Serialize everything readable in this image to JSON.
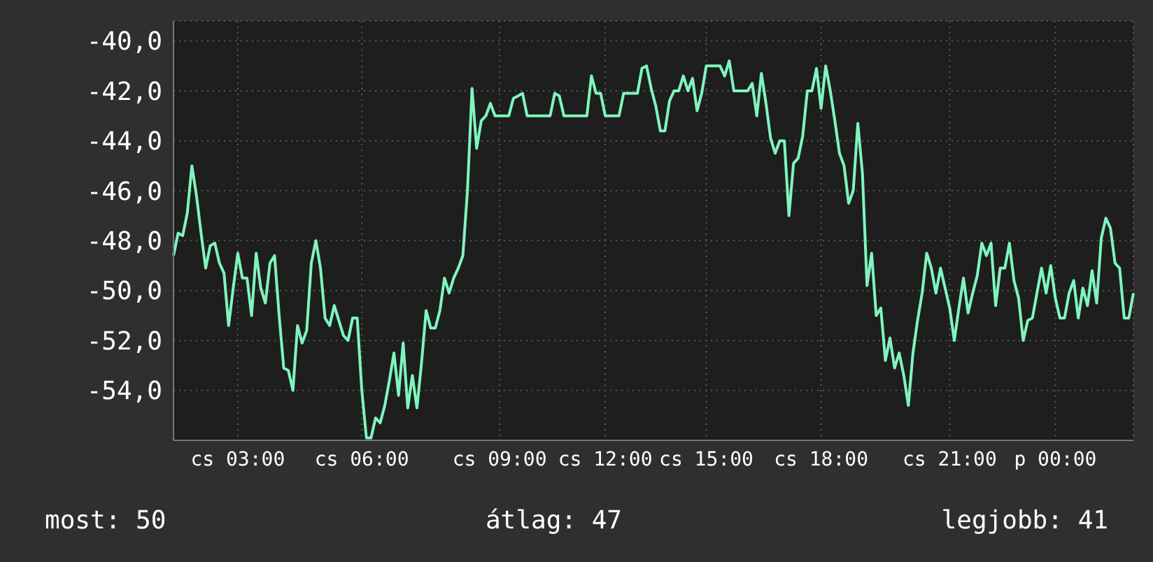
{
  "chart_data": {
    "type": "line",
    "annotations": [
      "most: 50",
      "átlag: 47",
      "legjobb: 41"
    ],
    "categories": [
      null,
      null,
      null,
      null,
      null,
      null,
      null,
      null,
      null,
      null,
      null,
      null,
      null,
      null,
      "cs 03:00",
      null,
      null,
      null,
      null,
      null,
      null,
      null,
      null,
      null,
      null,
      null,
      null,
      null,
      null,
      null,
      null,
      null,
      null,
      null,
      null,
      null,
      null,
      null,
      null,
      null,
      null,
      "cs 06:00",
      null,
      null,
      null,
      null,
      null,
      null,
      null,
      null,
      null,
      null,
      null,
      null,
      null,
      null,
      null,
      null,
      null,
      null,
      null,
      null,
      null,
      null,
      null,
      null,
      null,
      null,
      null,
      null,
      null,
      "cs 09:00",
      null,
      null,
      null,
      null,
      null,
      null,
      null,
      null,
      null,
      null,
      null,
      null,
      null,
      null,
      null,
      null,
      null,
      null,
      null,
      null,
      null,
      null,
      "cs 12:00",
      null,
      null,
      null,
      null,
      null,
      null,
      null,
      null,
      null,
      null,
      null,
      null,
      null,
      null,
      null,
      null,
      null,
      null,
      null,
      null,
      null,
      "cs 15:00",
      null,
      null,
      null,
      null,
      null,
      null,
      null,
      null,
      null,
      null,
      null,
      null,
      null,
      null,
      null,
      null,
      null,
      null,
      null,
      null,
      null,
      null,
      null,
      null,
      "cs 18:00",
      null,
      null,
      null,
      null,
      null,
      null,
      null,
      null,
      null,
      null,
      null,
      null,
      null,
      null,
      null,
      null,
      null,
      null,
      null,
      null,
      null,
      null,
      null,
      null,
      null,
      null,
      null,
      "cs 21:00",
      null,
      null,
      null,
      null,
      null,
      null,
      null,
      null,
      null,
      null,
      null,
      null,
      null,
      null,
      null,
      null,
      null,
      null,
      null,
      null,
      null,
      null,
      "p 00:00",
      null,
      null,
      null,
      null,
      null,
      null,
      null,
      null,
      null,
      null,
      null,
      null,
      null,
      null,
      null,
      null,
      null
    ],
    "ylim": [
      -56,
      -39.2
    ],
    "yticks": [
      {
        "value": -54,
        "label": "-54,0"
      },
      {
        "value": -52,
        "label": "-52,0"
      },
      {
        "value": -50,
        "label": "-50,0"
      },
      {
        "value": -48,
        "label": "-48,0"
      },
      {
        "value": -46,
        "label": "-46,0"
      },
      {
        "value": -44,
        "label": "-44,0"
      },
      {
        "value": -42,
        "label": "-42,0"
      },
      {
        "value": -40,
        "label": "-40,0"
      }
    ],
    "grid": true,
    "marker": "none",
    "line_style": "solid",
    "series": [
      {
        "color": "#7ff5bd",
        "values": [
          -48.6,
          -47.7,
          -47.8,
          -46.9,
          -45.0,
          -46.2,
          -47.7,
          -49.1,
          -48.2,
          -48.1,
          -48.9,
          -49.3,
          -51.4,
          -49.9,
          -48.5,
          -49.5,
          -49.5,
          -51.0,
          -48.5,
          -49.9,
          -50.5,
          -48.9,
          -48.6,
          -51.0,
          -53.1,
          -53.2,
          -54.0,
          -51.4,
          -52.1,
          -51.6,
          -48.9,
          -48.0,
          -49.1,
          -51.1,
          -51.4,
          -50.6,
          -51.2,
          -51.8,
          -52.0,
          -51.1,
          -51.1,
          -54.0,
          -55.9,
          -55.9,
          -55.1,
          -55.3,
          -54.6,
          -53.6,
          -52.5,
          -54.2,
          -52.1,
          -54.7,
          -53.4,
          -54.7,
          -52.9,
          -50.8,
          -51.5,
          -51.5,
          -50.8,
          -49.5,
          -50.1,
          -49.5,
          -49.1,
          -48.6,
          -46.0,
          -41.9,
          -44.3,
          -43.2,
          -43.0,
          -42.5,
          -43.0,
          -43.0,
          -43.0,
          -43.0,
          -42.3,
          -42.2,
          -42.1,
          -43.0,
          -43.0,
          -43.0,
          -43.0,
          -43.0,
          -43.0,
          -42.1,
          -42.2,
          -43.0,
          -43.0,
          -43.0,
          -43.0,
          -43.0,
          -43.0,
          -41.4,
          -42.1,
          -42.1,
          -43.0,
          -43.0,
          -43.0,
          -43.0,
          -42.1,
          -42.1,
          -42.1,
          -42.1,
          -41.1,
          -41.0,
          -41.9,
          -42.6,
          -43.6,
          -43.6,
          -42.4,
          -42.0,
          -42.0,
          -41.4,
          -42.0,
          -41.5,
          -42.8,
          -42.1,
          -41.0,
          -41.0,
          -41.0,
          -41.0,
          -41.4,
          -40.8,
          -42.0,
          -42.0,
          -42.0,
          -42.0,
          -41.7,
          -43.0,
          -41.3,
          -42.5,
          -43.9,
          -44.5,
          -44.0,
          -44.0,
          -47.0,
          -44.9,
          -44.7,
          -43.8,
          -42.0,
          -42.0,
          -41.1,
          -42.7,
          -41.0,
          -42.0,
          -43.2,
          -44.5,
          -45.0,
          -46.5,
          -46.0,
          -43.3,
          -45.3,
          -49.8,
          -48.5,
          -51.0,
          -50.7,
          -52.8,
          -51.9,
          -53.1,
          -52.5,
          -53.4,
          -54.6,
          -52.5,
          -51.2,
          -50.1,
          -48.5,
          -49.1,
          -50.1,
          -49.1,
          -49.9,
          -50.7,
          -52.0,
          -50.7,
          -49.5,
          -50.9,
          -50.1,
          -49.4,
          -48.1,
          -48.6,
          -48.1,
          -50.6,
          -49.1,
          -49.1,
          -48.1,
          -49.6,
          -50.3,
          -52.0,
          -51.2,
          -51.1,
          -50.1,
          -49.1,
          -50.1,
          -49.0,
          -50.3,
          -51.1,
          -51.1,
          -50.1,
          -49.6,
          -51.1,
          -49.9,
          -50.6,
          -49.2,
          -50.5,
          -47.9,
          -47.1,
          -47.5,
          -48.9,
          -49.1,
          -51.1,
          -51.1,
          -50.1
        ]
      }
    ]
  }
}
